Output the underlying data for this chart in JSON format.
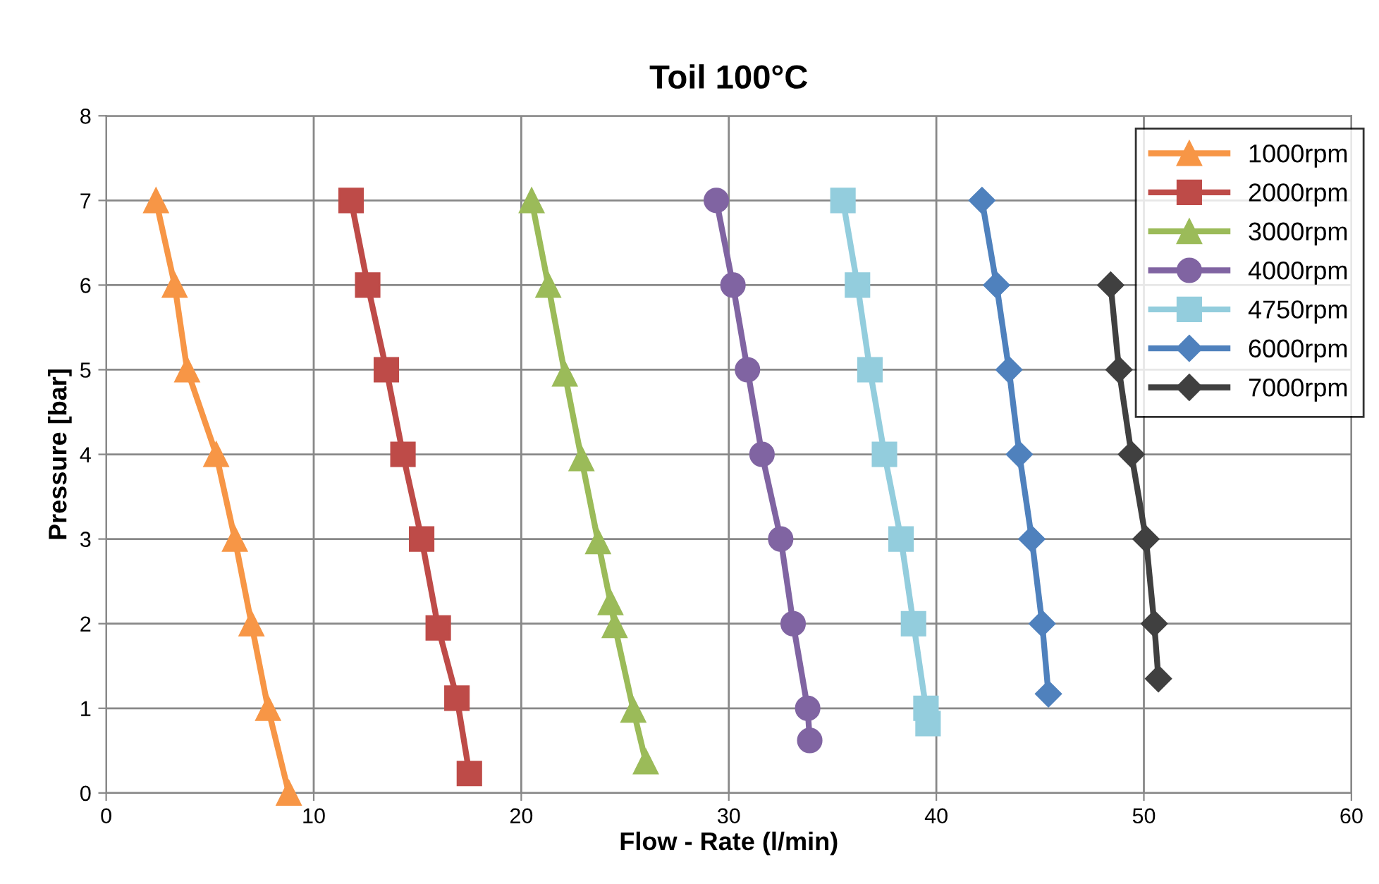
{
  "chart_data": {
    "type": "line",
    "title": "Toil 100°C",
    "xlabel": "Flow - Rate (l/min)",
    "ylabel": "Pressure [bar]",
    "xlim": [
      0,
      60
    ],
    "xticks": [
      0,
      10,
      20,
      30,
      40,
      50,
      60
    ],
    "ylim": [
      0,
      8
    ],
    "yticks": [
      0,
      1,
      2,
      3,
      4,
      5,
      6,
      7,
      8
    ],
    "grid": true,
    "legend": "top right",
    "line_style": "solid",
    "series": [
      {
        "name": "1000rpm",
        "color": "#f79646",
        "marker": "triangle",
        "x": [
          2.4,
          3.3,
          3.9,
          5.3,
          6.2,
          7.0,
          7.8,
          8.8
        ],
        "values": [
          7,
          6,
          5,
          4,
          3,
          2,
          1,
          0
        ]
      },
      {
        "name": "2000rpm",
        "color": "#be4b48",
        "marker": "square",
        "x": [
          11.8,
          12.6,
          13.5,
          14.3,
          15.2,
          16.0,
          16.9,
          17.5
        ],
        "values": [
          7,
          6,
          5,
          4,
          3,
          1.95,
          1.12,
          0.23
        ]
      },
      {
        "name": "3000rpm",
        "color": "#9bbb59",
        "marker": "triangle",
        "x": [
          20.5,
          21.3,
          22.1,
          22.9,
          23.7,
          24.3,
          24.5,
          25.4,
          26.0
        ],
        "values": [
          7,
          6,
          4.95,
          3.95,
          2.97,
          2.25,
          1.98,
          0.98,
          0.37
        ]
      },
      {
        "name": "4000rpm",
        "color": "#8064a2",
        "marker": "circle",
        "x": [
          29.4,
          30.2,
          30.9,
          31.6,
          32.5,
          33.1,
          33.8,
          33.9
        ],
        "values": [
          7,
          6,
          5,
          4,
          3,
          2,
          1,
          0.62
        ]
      },
      {
        "name": "4750rpm",
        "color": "#93cddd",
        "marker": "square",
        "x": [
          35.5,
          36.2,
          36.8,
          37.5,
          38.3,
          38.9,
          39.5,
          39.6
        ],
        "values": [
          7,
          6,
          5,
          4,
          3,
          2,
          1,
          0.82
        ]
      },
      {
        "name": "6000rpm",
        "color": "#4f81bd",
        "marker": "diamond",
        "x": [
          42.2,
          42.9,
          43.5,
          44.0,
          44.6,
          45.1,
          45.4
        ],
        "values": [
          7,
          6,
          5,
          4,
          3,
          2,
          1.17
        ]
      },
      {
        "name": "7000rpm",
        "color": "#404040",
        "marker": "diamond",
        "x": [
          48.4,
          48.8,
          49.4,
          50.1,
          50.5,
          50.7
        ],
        "values": [
          6,
          5,
          4,
          3,
          2,
          1.35
        ]
      }
    ]
  }
}
